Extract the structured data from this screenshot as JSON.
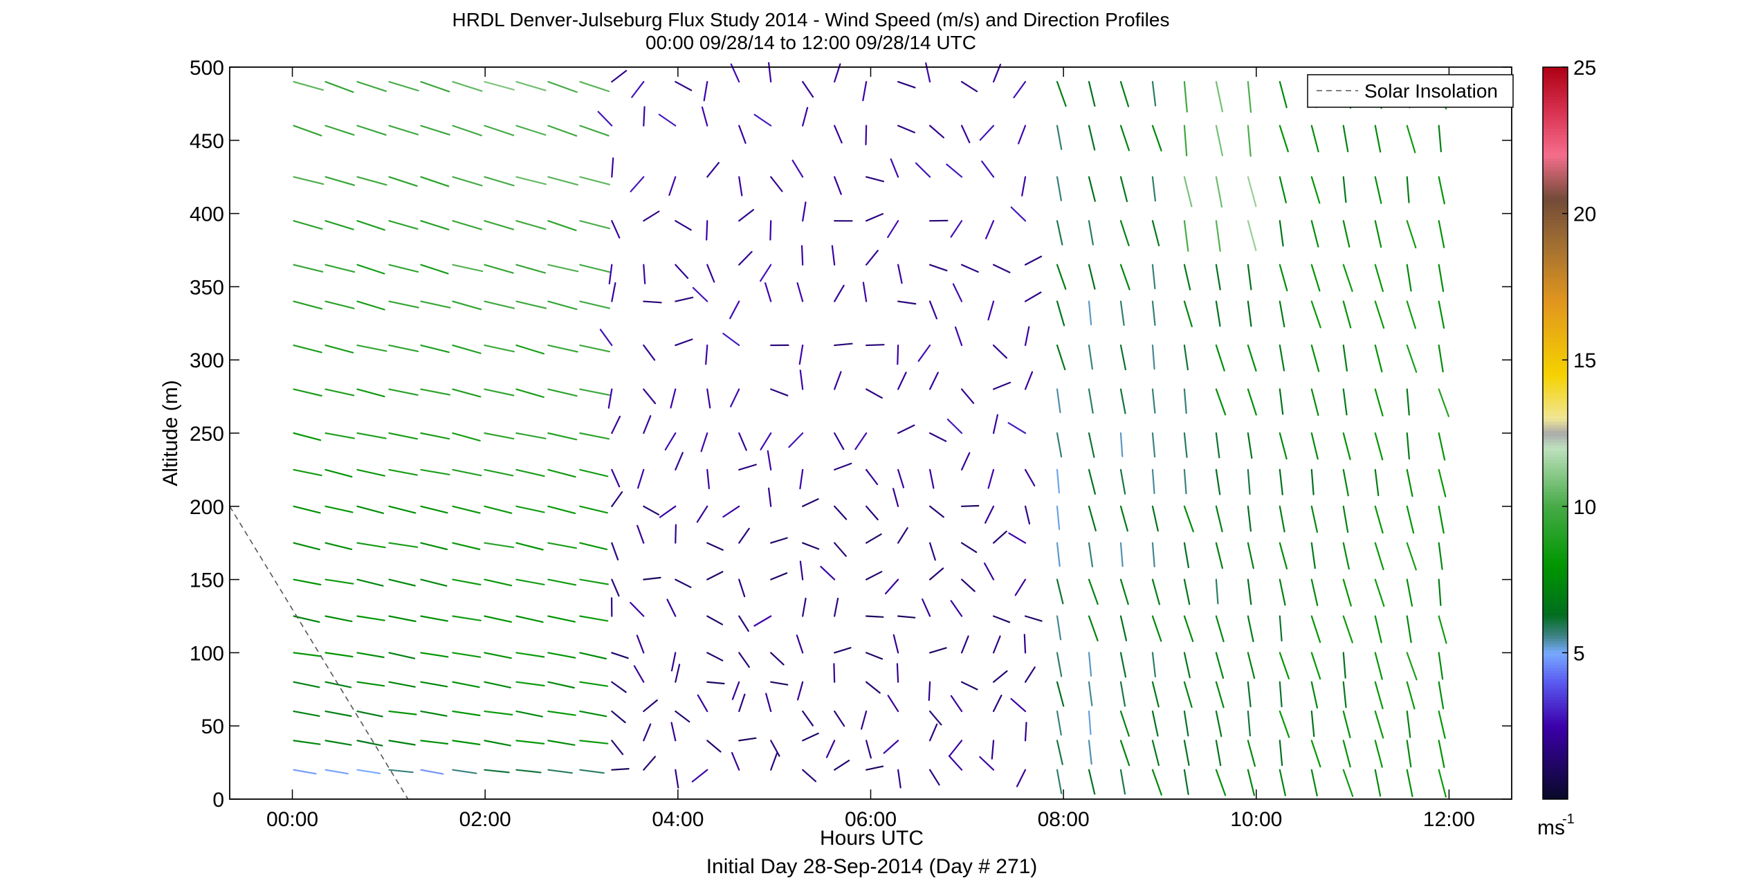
{
  "chart_data": {
    "type": "wind-barb-profile",
    "title": "HRDL Denver-Julseburg Flux Study 2014 - Wind Speed (m/s) and Direction Profiles",
    "subtitle": "00:00 09/28/14 to 12:00 09/28/14  UTC",
    "xlabel": "Hours UTC",
    "xlabel2": "Initial Day 28-Sep-2014 (Day # 271)",
    "ylabel": "Altitude (m)",
    "xlim": [
      -0.65,
      12.65
    ],
    "ylim": [
      0,
      500
    ],
    "xticks": [
      0,
      2,
      4,
      6,
      8,
      10,
      12
    ],
    "xtick_labels": [
      "00:00",
      "02:00",
      "04:00",
      "06:00",
      "08:00",
      "10:00",
      "12:00"
    ],
    "yticks": [
      0,
      50,
      100,
      150,
      200,
      250,
      300,
      350,
      400,
      450,
      500
    ],
    "ytick_labels": [
      "0",
      "50",
      "100",
      "150",
      "200",
      "250",
      "300",
      "350",
      "400",
      "450",
      "500"
    ],
    "legend": {
      "label": "Solar Insolation",
      "location": "top-right"
    },
    "solar_insolation": {
      "x": [
        -0.65,
        1.2
      ],
      "y": [
        200,
        0
      ]
    },
    "colorbar": {
      "min": 0,
      "max": 25,
      "ticks": [
        5,
        10,
        15,
        20,
        25
      ],
      "tick_labels": [
        "5",
        "10",
        "15",
        "20",
        "25"
      ],
      "unit_label": "ms",
      "unit_exponent": "-1"
    },
    "grid": false,
    "barb_altitudes": [
      20,
      40,
      60,
      80,
      100,
      125,
      150,
      175,
      200,
      225,
      250,
      280,
      310,
      340,
      365,
      395,
      425,
      460,
      490
    ],
    "barb_time_start": 0,
    "barb_time_step": 0.33,
    "barb_time_end": 12.05,
    "note_phases": "wind field estimated from figure: westerly, moderate before 03:00; light and variable 03:30-07:30; northerly/southerly moderate after 08:00"
  }
}
